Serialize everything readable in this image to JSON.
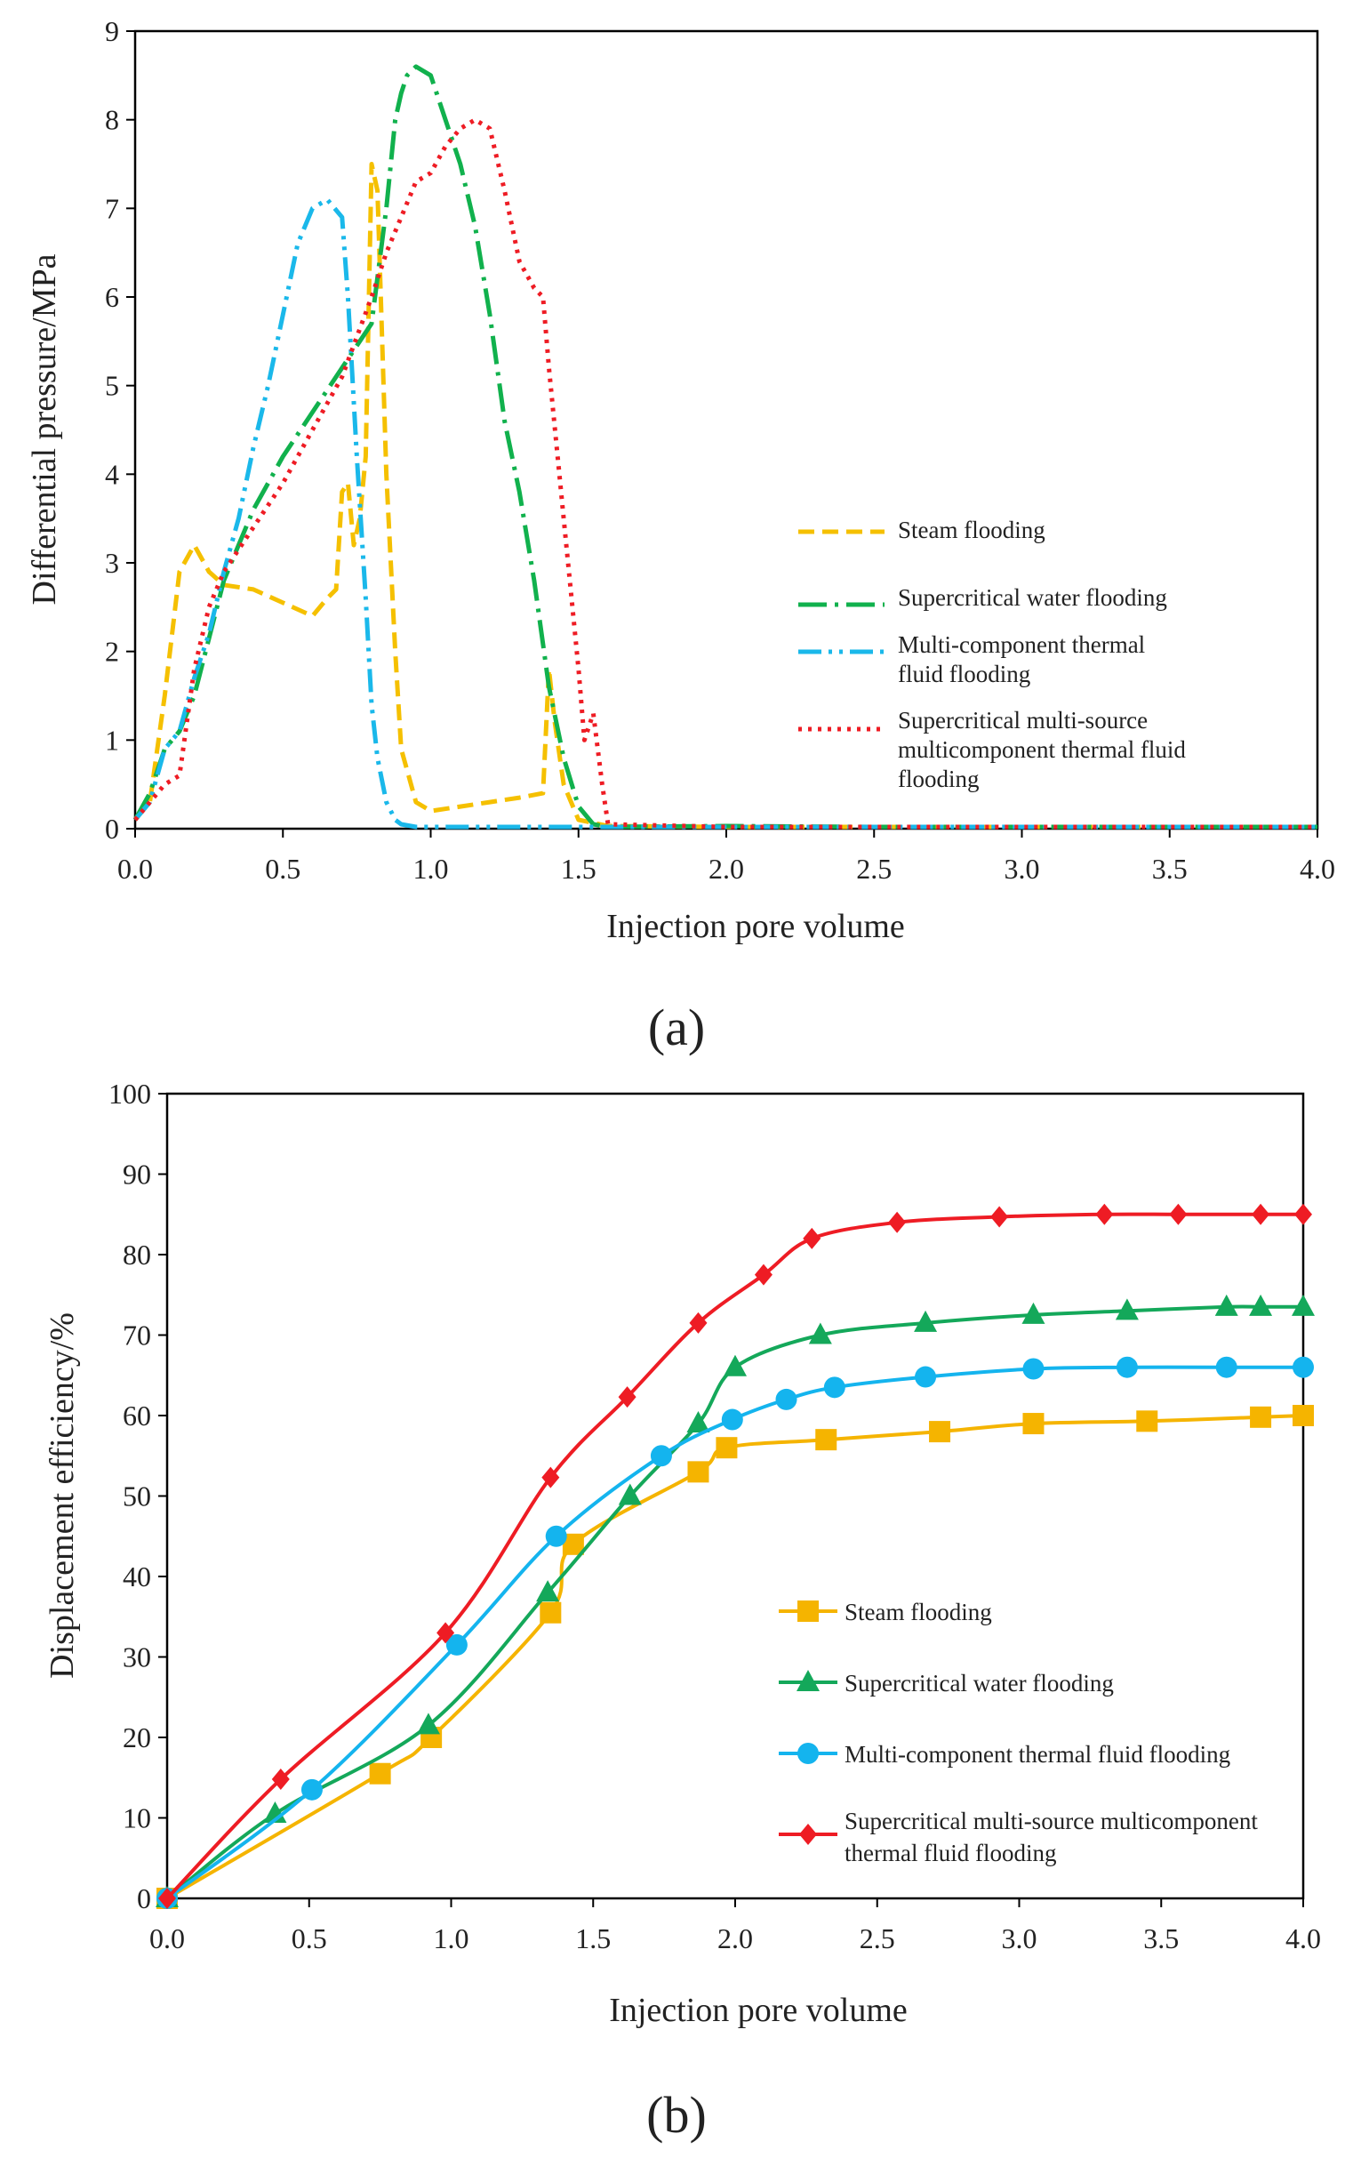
{
  "figure": {
    "panel_labels": [
      "(a)",
      "(b)"
    ]
  },
  "chart_data": [
    {
      "type": "line",
      "panel": "(a)",
      "title": "",
      "xlabel": "Injection pore volume",
      "ylabel": "Differential pressure/MPa",
      "xlim": [
        0,
        4
      ],
      "ylim": [
        0,
        9
      ],
      "xticks": [
        "0.0",
        "0.5",
        "1.0",
        "1.5",
        "2.0",
        "2.5",
        "3.0",
        "3.5",
        "4.0"
      ],
      "yticks": [
        "0",
        "1",
        "2",
        "3",
        "4",
        "5",
        "6",
        "7",
        "8",
        "9"
      ],
      "legend_position": "center-right",
      "series": [
        {
          "name": "Steam flooding",
          "legend_lines": [
            "Steam flooding"
          ],
          "color": "#f5c000",
          "dash": "18 9",
          "x": [
            0,
            0.05,
            0.1,
            0.15,
            0.2,
            0.25,
            0.3,
            0.4,
            0.5,
            0.6,
            0.65,
            0.68,
            0.7,
            0.72,
            0.74,
            0.76,
            0.78,
            0.8,
            0.82,
            0.85,
            0.88,
            0.9,
            0.95,
            1.0,
            1.1,
            1.2,
            1.3,
            1.38,
            1.4,
            1.42,
            1.45,
            1.5,
            1.6,
            2.0,
            2.5,
            3.0,
            3.5,
            4.0
          ],
          "y": [
            0.1,
            0.3,
            1.5,
            2.9,
            3.2,
            2.9,
            2.75,
            2.7,
            2.55,
            2.4,
            2.6,
            2.7,
            3.8,
            3.9,
            3.2,
            3.5,
            4.2,
            7.5,
            7.2,
            4.0,
            2.0,
            0.9,
            0.3,
            0.2,
            0.25,
            0.3,
            0.35,
            0.4,
            1.8,
            1.2,
            0.5,
            0.1,
            0.03,
            0.02,
            0.02,
            0.02,
            0.02,
            0.02
          ]
        },
        {
          "name": "Supercritical water flooding",
          "legend_lines": [
            "Supercritical water flooding"
          ],
          "color": "#11b14d",
          "dash": "32 9 4 9",
          "x": [
            0,
            0.05,
            0.1,
            0.15,
            0.2,
            0.3,
            0.4,
            0.5,
            0.6,
            0.7,
            0.8,
            0.85,
            0.88,
            0.9,
            0.92,
            0.95,
            1.0,
            1.05,
            1.1,
            1.15,
            1.2,
            1.25,
            1.3,
            1.35,
            1.4,
            1.45,
            1.5,
            1.55,
            1.6,
            2.0,
            2.5,
            3.0,
            3.5,
            4.0
          ],
          "y": [
            0.1,
            0.4,
            0.9,
            1.1,
            1.5,
            2.8,
            3.6,
            4.2,
            4.7,
            5.2,
            5.7,
            7.0,
            8.0,
            8.3,
            8.5,
            8.6,
            8.5,
            8.0,
            7.5,
            6.8,
            5.8,
            4.6,
            3.8,
            2.8,
            1.6,
            0.8,
            0.25,
            0.05,
            0.02,
            0.03,
            0.02,
            0.02,
            0.02,
            0.02
          ]
        },
        {
          "name": "Multi-component thermal fluid flooding",
          "legend_lines": [
            "Multi-component thermal",
            "fluid flooding"
          ],
          "color": "#1ab8ea",
          "dash": "26 8 4 8 4 8",
          "x": [
            0,
            0.05,
            0.1,
            0.15,
            0.2,
            0.25,
            0.3,
            0.35,
            0.4,
            0.45,
            0.5,
            0.55,
            0.6,
            0.65,
            0.7,
            0.72,
            0.75,
            0.78,
            0.8,
            0.82,
            0.85,
            0.88,
            0.9,
            0.95,
            1.0,
            1.2,
            1.5,
            2.0,
            2.5,
            3.0,
            3.5,
            4.0
          ],
          "y": [
            0.1,
            0.3,
            0.9,
            1.1,
            1.7,
            2.2,
            2.9,
            3.5,
            4.3,
            5.0,
            5.8,
            6.6,
            7.0,
            7.1,
            6.9,
            6.0,
            4.2,
            2.6,
            1.4,
            0.8,
            0.3,
            0.1,
            0.05,
            0.02,
            0.02,
            0.02,
            0.02,
            0.02,
            0.02,
            0.02,
            0.02,
            0.02
          ]
        },
        {
          "name": "Supercritical multi-source multicomponent thermal fluid flooding",
          "legend_lines": [
            "Supercritical multi-source",
            "multicomponent thermal fluid",
            "flooding"
          ],
          "color": "#ee1c24",
          "dash": "4 7",
          "x": [
            0,
            0.05,
            0.1,
            0.15,
            0.2,
            0.25,
            0.3,
            0.4,
            0.5,
            0.6,
            0.7,
            0.8,
            0.85,
            0.9,
            0.95,
            1.0,
            1.05,
            1.1,
            1.15,
            1.2,
            1.25,
            1.3,
            1.35,
            1.38,
            1.4,
            1.45,
            1.5,
            1.52,
            1.55,
            1.58,
            1.6,
            2.0,
            2.5,
            3.0,
            3.5,
            4.0
          ],
          "y": [
            0.1,
            0.3,
            0.5,
            0.6,
            1.8,
            2.5,
            2.9,
            3.4,
            3.9,
            4.5,
            5.1,
            6.0,
            6.5,
            6.9,
            7.3,
            7.4,
            7.7,
            7.9,
            8.0,
            7.9,
            7.2,
            6.4,
            6.1,
            6.0,
            5.2,
            3.5,
            1.8,
            1.0,
            1.3,
            0.5,
            0.05,
            0.02,
            0.02,
            0.02,
            0.02,
            0.02
          ]
        }
      ]
    },
    {
      "type": "line",
      "panel": "(b)",
      "title": "",
      "xlabel": "Injection pore volume",
      "ylabel": "Displacement efficiency/%",
      "xlim": [
        0,
        4
      ],
      "ylim": [
        0,
        100
      ],
      "xticks": [
        "0.0",
        "0.5",
        "1.0",
        "1.5",
        "2.0",
        "2.5",
        "3.0",
        "3.5",
        "4.0"
      ],
      "yticks": [
        "0",
        "10",
        "20",
        "30",
        "40",
        "50",
        "60",
        "70",
        "80",
        "90",
        "100"
      ],
      "legend_position": "lower-right",
      "series": [
        {
          "name": "Steam flooding",
          "legend_lines": [
            "Steam flooding"
          ],
          "color": "#f5b400",
          "marker": "square",
          "x": [
            0,
            0.75,
            0.93,
            1.35,
            1.43,
            1.87,
            1.97,
            2.32,
            2.72,
            3.05,
            3.45,
            3.85,
            4.0
          ],
          "y": [
            0,
            15.5,
            20,
            35.5,
            44,
            53,
            56,
            57,
            58,
            59,
            59.3,
            59.8,
            60
          ]
        },
        {
          "name": "Supercritical water flooding",
          "legend_lines": [
            "Supercritical water flooding"
          ],
          "color": "#14a85a",
          "marker": "triangle",
          "x": [
            0,
            0.38,
            0.92,
            1.34,
            1.63,
            1.87,
            2.0,
            2.3,
            2.67,
            3.05,
            3.38,
            3.73,
            3.85,
            4.0
          ],
          "y": [
            0,
            10.5,
            21.5,
            38,
            50,
            59,
            66,
            70,
            71.5,
            72.5,
            73,
            73.5,
            73.5,
            73.5
          ]
        },
        {
          "name": "Multi-component thermal fluid flooding",
          "legend_lines": [
            "Multi-component thermal  fluid flooding"
          ],
          "color": "#14b4ee",
          "marker": "circle",
          "x": [
            0,
            0.51,
            1.02,
            1.37,
            1.74,
            1.99,
            2.18,
            2.35,
            2.67,
            3.05,
            3.38,
            3.73,
            4.0
          ],
          "y": [
            0,
            13.5,
            31.5,
            45,
            55,
            59.5,
            62,
            63.5,
            64.8,
            65.8,
            66,
            66,
            66
          ]
        },
        {
          "name": "Supercritical multi-source multicomponent thermal fluid flooding",
          "legend_lines": [
            "Supercritical multi-source multicomponent",
            "thermal fluid flooding"
          ],
          "color": "#ee1c24",
          "marker": "diamond",
          "x": [
            0,
            0.4,
            0.98,
            1.35,
            1.62,
            1.87,
            2.1,
            2.27,
            2.57,
            2.93,
            3.3,
            3.56,
            3.85,
            4.0
          ],
          "y": [
            0,
            14.8,
            33,
            52.3,
            62.3,
            71.5,
            77.5,
            82,
            84,
            84.7,
            85,
            85,
            85,
            85
          ]
        }
      ]
    }
  ]
}
